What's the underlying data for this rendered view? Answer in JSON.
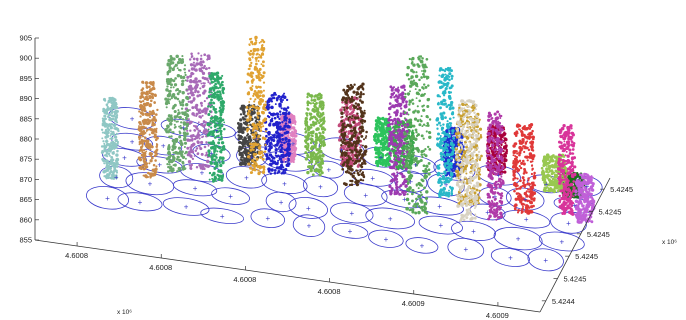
{
  "chart_data": {
    "type": "scatter",
    "projection": "3d",
    "title": "",
    "xlabel": "",
    "ylabel": "",
    "zlabel": "",
    "x_ticks": [
      "4.6008",
      "4.6008",
      "4.6008",
      "4.6008",
      "4.6009",
      "4.6009"
    ],
    "x_exponent": "x 10⁶",
    "y_ticks": [
      "5.4244",
      "5.4245",
      "5.4245",
      "5.4245",
      "5.4245",
      "5.4245"
    ],
    "y_exponent": "x 10⁶",
    "z_ticks": [
      "855",
      "860",
      "865",
      "870",
      "875",
      "880",
      "885",
      "890",
      "895",
      "900",
      "905"
    ],
    "zlim": [
      855,
      905
    ],
    "grid": false,
    "legend": "none",
    "ground_outline_color": "#3a3acb",
    "seed_marker": "+",
    "series": [
      {
        "color": "#8fc7c4",
        "base": [
          0.06,
          0.3
        ],
        "top": 888
      },
      {
        "color": "#c98a4a",
        "base": [
          0.13,
          0.36
        ],
        "top": 892
      },
      {
        "color": "#6aa86c",
        "base": [
          0.18,
          0.45
        ],
        "top": 897
      },
      {
        "color": "#a86ab8",
        "base": [
          0.22,
          0.5
        ],
        "top": 897
      },
      {
        "color": "#2fa96a",
        "base": [
          0.26,
          0.42
        ],
        "top": 895
      },
      {
        "color": "#e0a232",
        "base": [
          0.33,
          0.55
        ],
        "top": 902
      },
      {
        "color": "#444444",
        "base": [
          0.31,
          0.62
        ],
        "top": 883
      },
      {
        "color": "#2222cc",
        "base": [
          0.37,
          0.58
        ],
        "top": 888
      },
      {
        "color": "#e080c0",
        "base": [
          0.38,
          0.7
        ],
        "top": 880
      },
      {
        "color": "#7ab84c",
        "base": [
          0.44,
          0.62
        ],
        "top": 888
      },
      {
        "color": "#c24a7a",
        "base": [
          0.5,
          0.75
        ],
        "top": 885
      },
      {
        "color": "#52331a",
        "base": [
          0.52,
          0.58
        ],
        "top": 893
      },
      {
        "color": "#2cc35c",
        "base": [
          0.56,
          0.8
        ],
        "top": 880
      },
      {
        "color": "#9c3ab0",
        "base": [
          0.61,
          0.55
        ],
        "top": 895
      },
      {
        "color": "#3ca84c",
        "base": [
          0.6,
          0.8
        ],
        "top": 880
      },
      {
        "color": "#5aa85a",
        "base": [
          0.66,
          0.4
        ],
        "top": 907
      },
      {
        "color": "#28b8c8",
        "base": [
          0.7,
          0.6
        ],
        "top": 900
      },
      {
        "color": "#1c2fd0",
        "base": [
          0.7,
          0.8
        ],
        "top": 880
      },
      {
        "color": "#d8d2c2",
        "base": [
          0.76,
          0.4
        ],
        "top": 898
      },
      {
        "color": "#c8a032",
        "base": [
          0.75,
          0.55
        ],
        "top": 893
      },
      {
        "color": "#b03aa8",
        "base": [
          0.81,
          0.45
        ],
        "top": 895
      },
      {
        "color": "#a8003a",
        "base": [
          0.78,
          0.88
        ],
        "top": 880
      },
      {
        "color": "#e03838",
        "base": [
          0.86,
          0.55
        ],
        "top": 890
      },
      {
        "color": "#98c850",
        "base": [
          0.9,
          0.8
        ],
        "top": 877
      },
      {
        "color": "#d8349a",
        "base": [
          0.94,
          0.6
        ],
        "top": 890
      },
      {
        "color": "#c060d8",
        "base": [
          0.98,
          0.55
        ],
        "top": 880
      },
      {
        "color": "#1a6e1a",
        "base": [
          0.92,
          1.0
        ],
        "top": 862
      }
    ]
  }
}
